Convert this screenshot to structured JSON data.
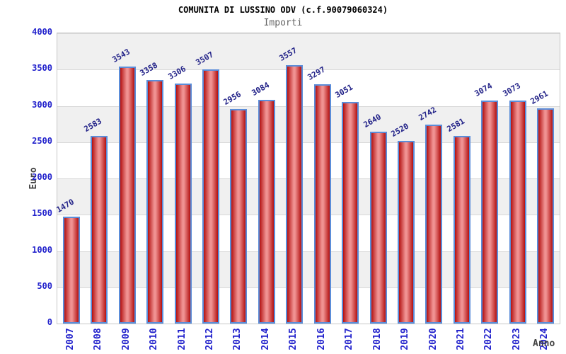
{
  "chart_data": {
    "type": "bar",
    "title": "COMUNITA DI LUSSINO ODV (c.f.90079060324)",
    "subtitle": "Importi",
    "ylabel": "Euro",
    "xlabel": "Anno",
    "categories": [
      "2007",
      "2008",
      "2009",
      "2010",
      "2011",
      "2012",
      "2013",
      "2014",
      "2015",
      "2016",
      "2017",
      "2018",
      "2019",
      "2020",
      "2021",
      "2022",
      "2023",
      "2024"
    ],
    "values": [
      1470,
      2583,
      3543,
      3358,
      3306,
      3507,
      2956,
      3084,
      3557,
      3297,
      3051,
      2640,
      2520,
      2742,
      2581,
      3074,
      3073,
      2961
    ],
    "ylim": [
      0,
      4000
    ],
    "ytick_step": 500,
    "legend": "none",
    "grid": "horizontal-bands-alternating",
    "colors": {
      "bar_border": "#5b8dd9",
      "bar_edge": "#b31111",
      "bar_center": "#f09292",
      "axis_tick_label": "#2222cc",
      "value_label": "#222288",
      "band_gray": "#f0f0f0",
      "band_white": "#ffffff",
      "gridline": "#d9d9d9",
      "plot_border": "#c6c6c6",
      "title_color": "#000000",
      "subtitle_color": "#666666",
      "axis_title_color": "#444444"
    }
  }
}
